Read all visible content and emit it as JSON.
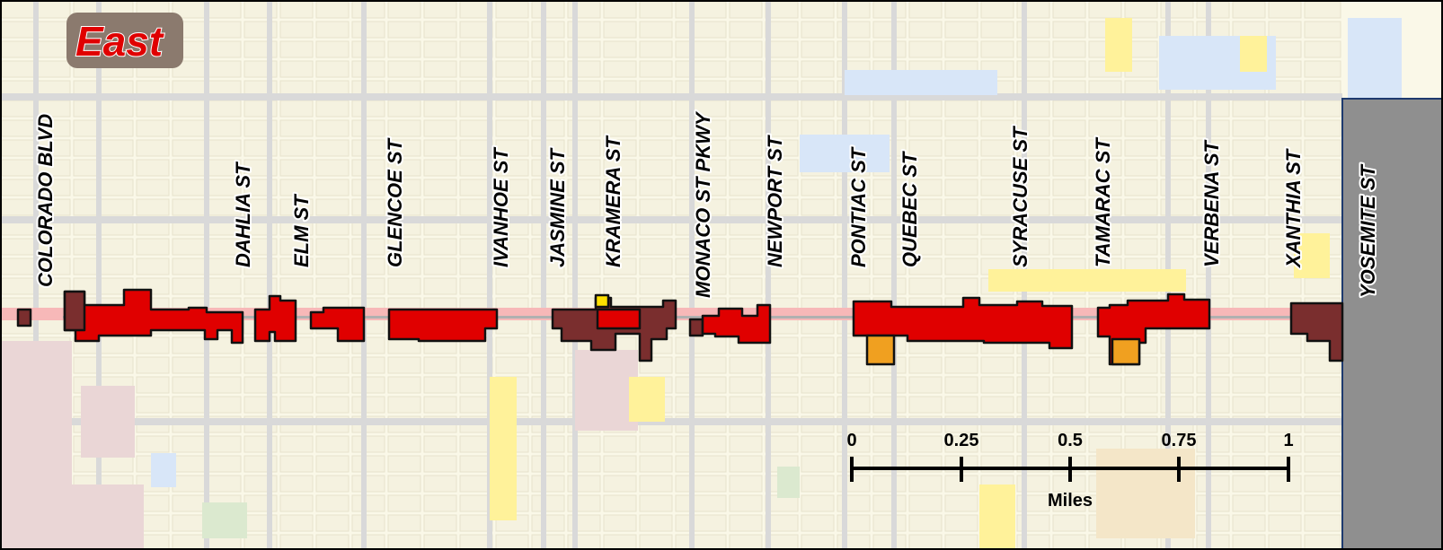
{
  "title": "East",
  "streets": [
    "COLORADO BLVD",
    "DAHLIA ST",
    "ELM ST",
    "GLENCOE ST",
    "IVANHOE ST",
    "JASMINE ST",
    "KRAMERA ST",
    "MONACO ST PKWY",
    "NEWPORT ST",
    "PONTIAC ST",
    "QUEBEC ST",
    "SYRACUSE ST",
    "TAMARAC ST",
    "VERBENA ST",
    "XANTHIA ST",
    "YOSEMITE ST"
  ],
  "scale": {
    "ticks": [
      "0",
      "0.25",
      "0.5",
      "0.75",
      "1"
    ],
    "unit": "Miles"
  },
  "colors": {
    "corridor_red": "#e00000",
    "parcel_maroon": "#7a2e2e",
    "parcel_outline": "#111111",
    "basemap": "#faf8e8",
    "blocks": "#ede9d6",
    "roads": "#d9d9d9",
    "corridor_pink": "#f7b8b8",
    "yellow_landuse": "#fff29a",
    "blue_landuse": "#d8e6f8",
    "orange_parcel": "#f0a020",
    "yellow_parcel": "#ffe000",
    "jurisdiction_gray": "#8f8f8f"
  }
}
